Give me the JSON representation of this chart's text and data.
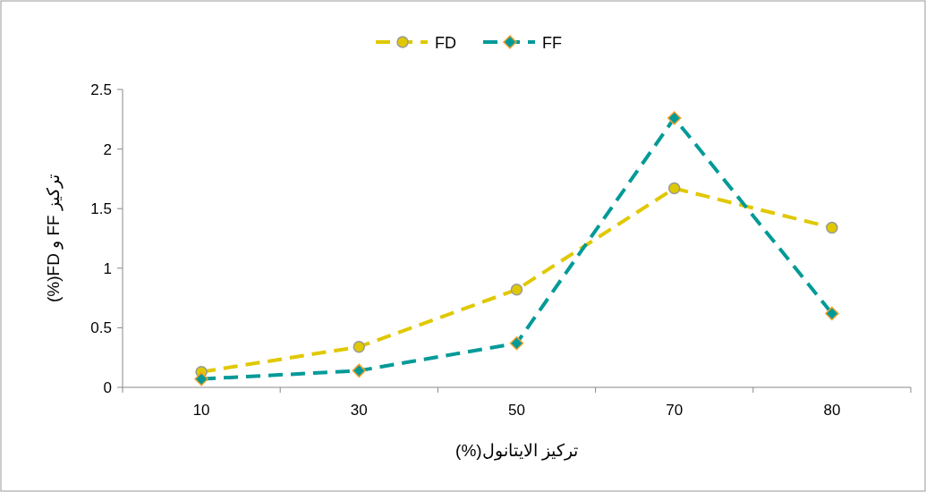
{
  "chart_data": {
    "type": "line",
    "xlabel": "تركيز الايتانول(%)",
    "ylabel": "تركيز FF و FD(%)",
    "categories": [
      "10",
      "30",
      "50",
      "70",
      "80"
    ],
    "series": [
      {
        "name": "FD",
        "color": "#e0c800",
        "marker": "circle",
        "values": [
          0.13,
          0.34,
          0.82,
          1.67,
          1.34
        ]
      },
      {
        "name": "FF",
        "color": "#009a98",
        "marker": "diamond",
        "values": [
          0.07,
          0.14,
          0.37,
          2.26,
          0.62
        ]
      }
    ],
    "ylim": [
      0,
      2.5
    ],
    "yticks": [
      0,
      {
        "value": 0.5,
        "label": "0.5"
      },
      1,
      {
        "value": 1.5,
        "label": "1.5"
      },
      2,
      {
        "value": 2.5,
        "label": "2.5"
      }
    ],
    "legend": "top",
    "line_style": "dashed"
  }
}
